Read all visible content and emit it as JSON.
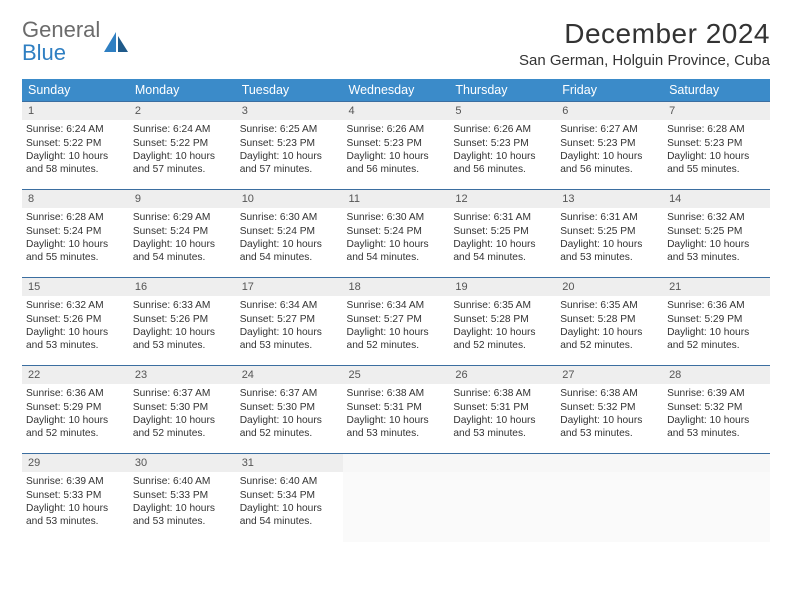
{
  "brand": {
    "line1": "General",
    "line2": "Blue"
  },
  "title": "December 2024",
  "location": "San German, Holguin Province, Cuba",
  "colors": {
    "header_bg": "#3b8bc9",
    "header_text": "#ffffff",
    "row_divider": "#3b6ea0",
    "daynum_bg": "#eeeeee",
    "logo_gray": "#6b6b6b",
    "logo_blue": "#2f7fc2"
  },
  "day_headers": [
    "Sunday",
    "Monday",
    "Tuesday",
    "Wednesday",
    "Thursday",
    "Friday",
    "Saturday"
  ],
  "weeks": [
    [
      {
        "n": "1",
        "sr": "6:24 AM",
        "ss": "5:22 PM",
        "dl": "10 hours and 58 minutes."
      },
      {
        "n": "2",
        "sr": "6:24 AM",
        "ss": "5:22 PM",
        "dl": "10 hours and 57 minutes."
      },
      {
        "n": "3",
        "sr": "6:25 AM",
        "ss": "5:23 PM",
        "dl": "10 hours and 57 minutes."
      },
      {
        "n": "4",
        "sr": "6:26 AM",
        "ss": "5:23 PM",
        "dl": "10 hours and 56 minutes."
      },
      {
        "n": "5",
        "sr": "6:26 AM",
        "ss": "5:23 PM",
        "dl": "10 hours and 56 minutes."
      },
      {
        "n": "6",
        "sr": "6:27 AM",
        "ss": "5:23 PM",
        "dl": "10 hours and 56 minutes."
      },
      {
        "n": "7",
        "sr": "6:28 AM",
        "ss": "5:23 PM",
        "dl": "10 hours and 55 minutes."
      }
    ],
    [
      {
        "n": "8",
        "sr": "6:28 AM",
        "ss": "5:24 PM",
        "dl": "10 hours and 55 minutes."
      },
      {
        "n": "9",
        "sr": "6:29 AM",
        "ss": "5:24 PM",
        "dl": "10 hours and 54 minutes."
      },
      {
        "n": "10",
        "sr": "6:30 AM",
        "ss": "5:24 PM",
        "dl": "10 hours and 54 minutes."
      },
      {
        "n": "11",
        "sr": "6:30 AM",
        "ss": "5:24 PM",
        "dl": "10 hours and 54 minutes."
      },
      {
        "n": "12",
        "sr": "6:31 AM",
        "ss": "5:25 PM",
        "dl": "10 hours and 54 minutes."
      },
      {
        "n": "13",
        "sr": "6:31 AM",
        "ss": "5:25 PM",
        "dl": "10 hours and 53 minutes."
      },
      {
        "n": "14",
        "sr": "6:32 AM",
        "ss": "5:25 PM",
        "dl": "10 hours and 53 minutes."
      }
    ],
    [
      {
        "n": "15",
        "sr": "6:32 AM",
        "ss": "5:26 PM",
        "dl": "10 hours and 53 minutes."
      },
      {
        "n": "16",
        "sr": "6:33 AM",
        "ss": "5:26 PM",
        "dl": "10 hours and 53 minutes."
      },
      {
        "n": "17",
        "sr": "6:34 AM",
        "ss": "5:27 PM",
        "dl": "10 hours and 53 minutes."
      },
      {
        "n": "18",
        "sr": "6:34 AM",
        "ss": "5:27 PM",
        "dl": "10 hours and 52 minutes."
      },
      {
        "n": "19",
        "sr": "6:35 AM",
        "ss": "5:28 PM",
        "dl": "10 hours and 52 minutes."
      },
      {
        "n": "20",
        "sr": "6:35 AM",
        "ss": "5:28 PM",
        "dl": "10 hours and 52 minutes."
      },
      {
        "n": "21",
        "sr": "6:36 AM",
        "ss": "5:29 PM",
        "dl": "10 hours and 52 minutes."
      }
    ],
    [
      {
        "n": "22",
        "sr": "6:36 AM",
        "ss": "5:29 PM",
        "dl": "10 hours and 52 minutes."
      },
      {
        "n": "23",
        "sr": "6:37 AM",
        "ss": "5:30 PM",
        "dl": "10 hours and 52 minutes."
      },
      {
        "n": "24",
        "sr": "6:37 AM",
        "ss": "5:30 PM",
        "dl": "10 hours and 52 minutes."
      },
      {
        "n": "25",
        "sr": "6:38 AM",
        "ss": "5:31 PM",
        "dl": "10 hours and 53 minutes."
      },
      {
        "n": "26",
        "sr": "6:38 AM",
        "ss": "5:31 PM",
        "dl": "10 hours and 53 minutes."
      },
      {
        "n": "27",
        "sr": "6:38 AM",
        "ss": "5:32 PM",
        "dl": "10 hours and 53 minutes."
      },
      {
        "n": "28",
        "sr": "6:39 AM",
        "ss": "5:32 PM",
        "dl": "10 hours and 53 minutes."
      }
    ],
    [
      {
        "n": "29",
        "sr": "6:39 AM",
        "ss": "5:33 PM",
        "dl": "10 hours and 53 minutes."
      },
      {
        "n": "30",
        "sr": "6:40 AM",
        "ss": "5:33 PM",
        "dl": "10 hours and 53 minutes."
      },
      {
        "n": "31",
        "sr": "6:40 AM",
        "ss": "5:34 PM",
        "dl": "10 hours and 54 minutes."
      },
      null,
      null,
      null,
      null
    ]
  ],
  "labels": {
    "sunrise_prefix": "Sunrise: ",
    "sunset_prefix": "Sunset: ",
    "daylight_prefix": "Daylight: "
  }
}
